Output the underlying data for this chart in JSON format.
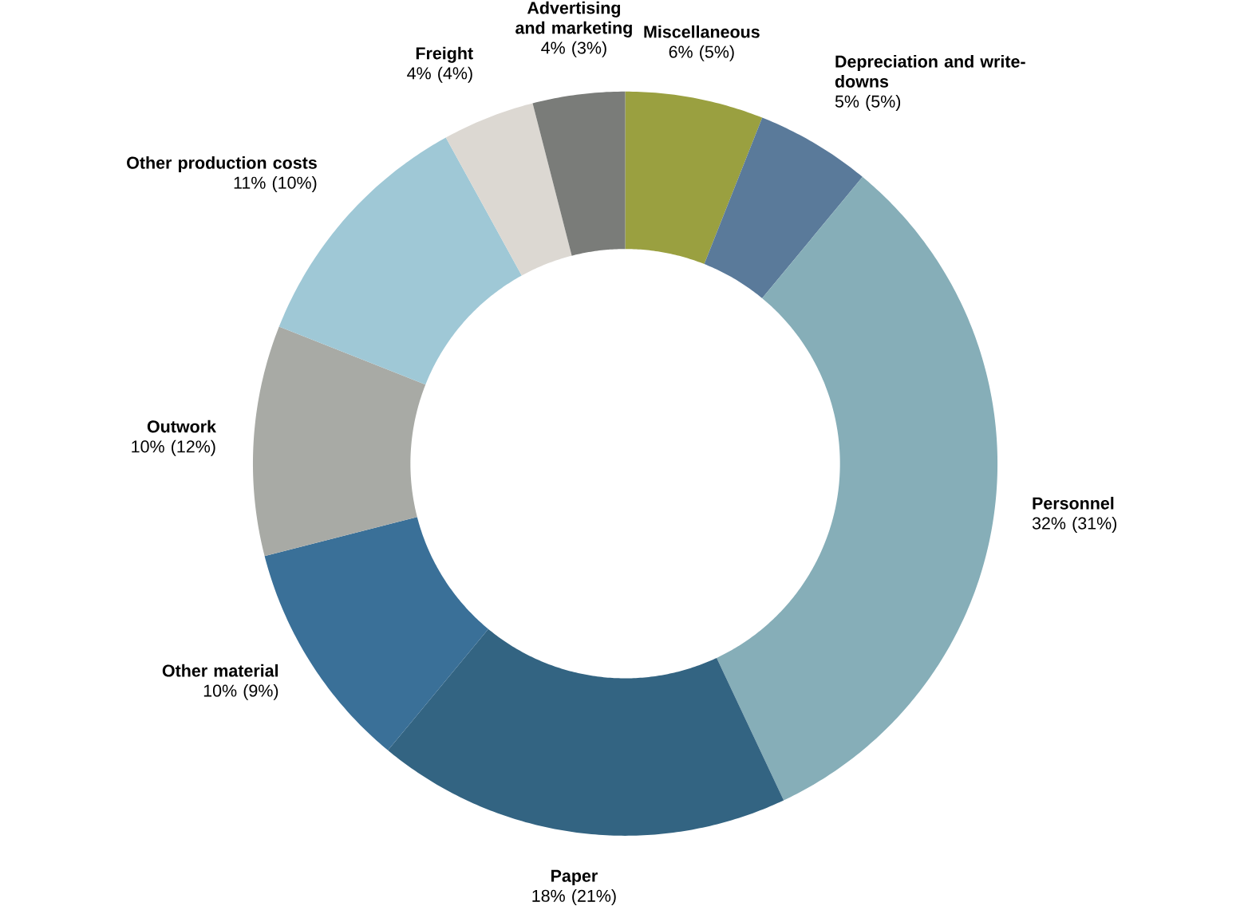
{
  "chart_data": {
    "type": "donut",
    "categories": [
      "Miscellaneous",
      "Depreciation and write-downs",
      "Personnel",
      "Paper",
      "Other material",
      "Outwork",
      "Other production costs",
      "Freight",
      "Advertising and marketing"
    ],
    "values": [
      6,
      5,
      32,
      18,
      10,
      10,
      11,
      4,
      4
    ],
    "value_labels": [
      "6% (5%)",
      "5% (5%)",
      "32% (31%)",
      "18% (21%)",
      "10% (9%)",
      "10% (12%)",
      "11% (10%)",
      "4% (4%)",
      "4% (3%)"
    ],
    "colors": [
      "#9aa040",
      "#5a7a9a",
      "#86aeb8",
      "#336482",
      "#3a7098",
      "#a8aaa5",
      "#9fc8d6",
      "#dcd8d2",
      "#7a7c79"
    ]
  }
}
